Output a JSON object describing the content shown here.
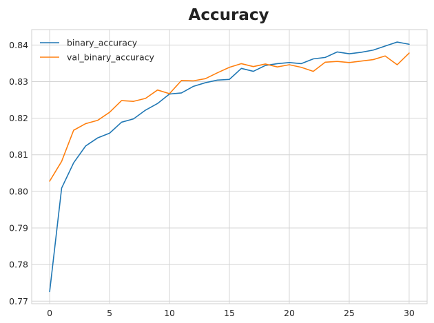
{
  "chart_data": {
    "type": "line",
    "title": "Accuracy",
    "xlabel": "",
    "ylabel": "",
    "xlim": [
      -1.5,
      31.5
    ],
    "ylim": [
      0.7693,
      0.8442
    ],
    "xticks": [
      0,
      5,
      10,
      15,
      20,
      25,
      30
    ],
    "yticks": [
      0.77,
      0.78,
      0.79,
      0.8,
      0.81,
      0.82,
      0.83,
      0.84
    ],
    "ytick_labels": [
      "0.77",
      "0.78",
      "0.79",
      "0.80",
      "0.81",
      "0.82",
      "0.83",
      "0.84"
    ],
    "grid": true,
    "legend_position": "top-left",
    "x": [
      0,
      1,
      2,
      3,
      4,
      5,
      6,
      7,
      8,
      9,
      10,
      11,
      12,
      13,
      14,
      15,
      16,
      17,
      18,
      19,
      20,
      21,
      22,
      23,
      24,
      25,
      26,
      27,
      28,
      29,
      30
    ],
    "series": [
      {
        "name": "binary_accuracy",
        "color": "#1f77b4",
        "values": [
          0.7726,
          0.8009,
          0.8078,
          0.8124,
          0.8146,
          0.8159,
          0.8189,
          0.8198,
          0.8222,
          0.824,
          0.8266,
          0.8269,
          0.8287,
          0.8297,
          0.8304,
          0.8306,
          0.8336,
          0.8328,
          0.8344,
          0.8349,
          0.8352,
          0.8349,
          0.8362,
          0.8366,
          0.8381,
          0.8376,
          0.838,
          0.8386,
          0.8397,
          0.8408,
          0.8402
        ]
      },
      {
        "name": "val_binary_accuracy",
        "color": "#ff7f0e",
        "values": [
          0.8028,
          0.8082,
          0.8167,
          0.8185,
          0.8194,
          0.8216,
          0.8248,
          0.8246,
          0.8254,
          0.8277,
          0.8267,
          0.8303,
          0.8302,
          0.8308,
          0.8324,
          0.8339,
          0.8349,
          0.8341,
          0.8348,
          0.834,
          0.8346,
          0.8339,
          0.8328,
          0.8353,
          0.8355,
          0.8352,
          0.8356,
          0.836,
          0.837,
          0.8346,
          0.8378
        ]
      }
    ]
  }
}
